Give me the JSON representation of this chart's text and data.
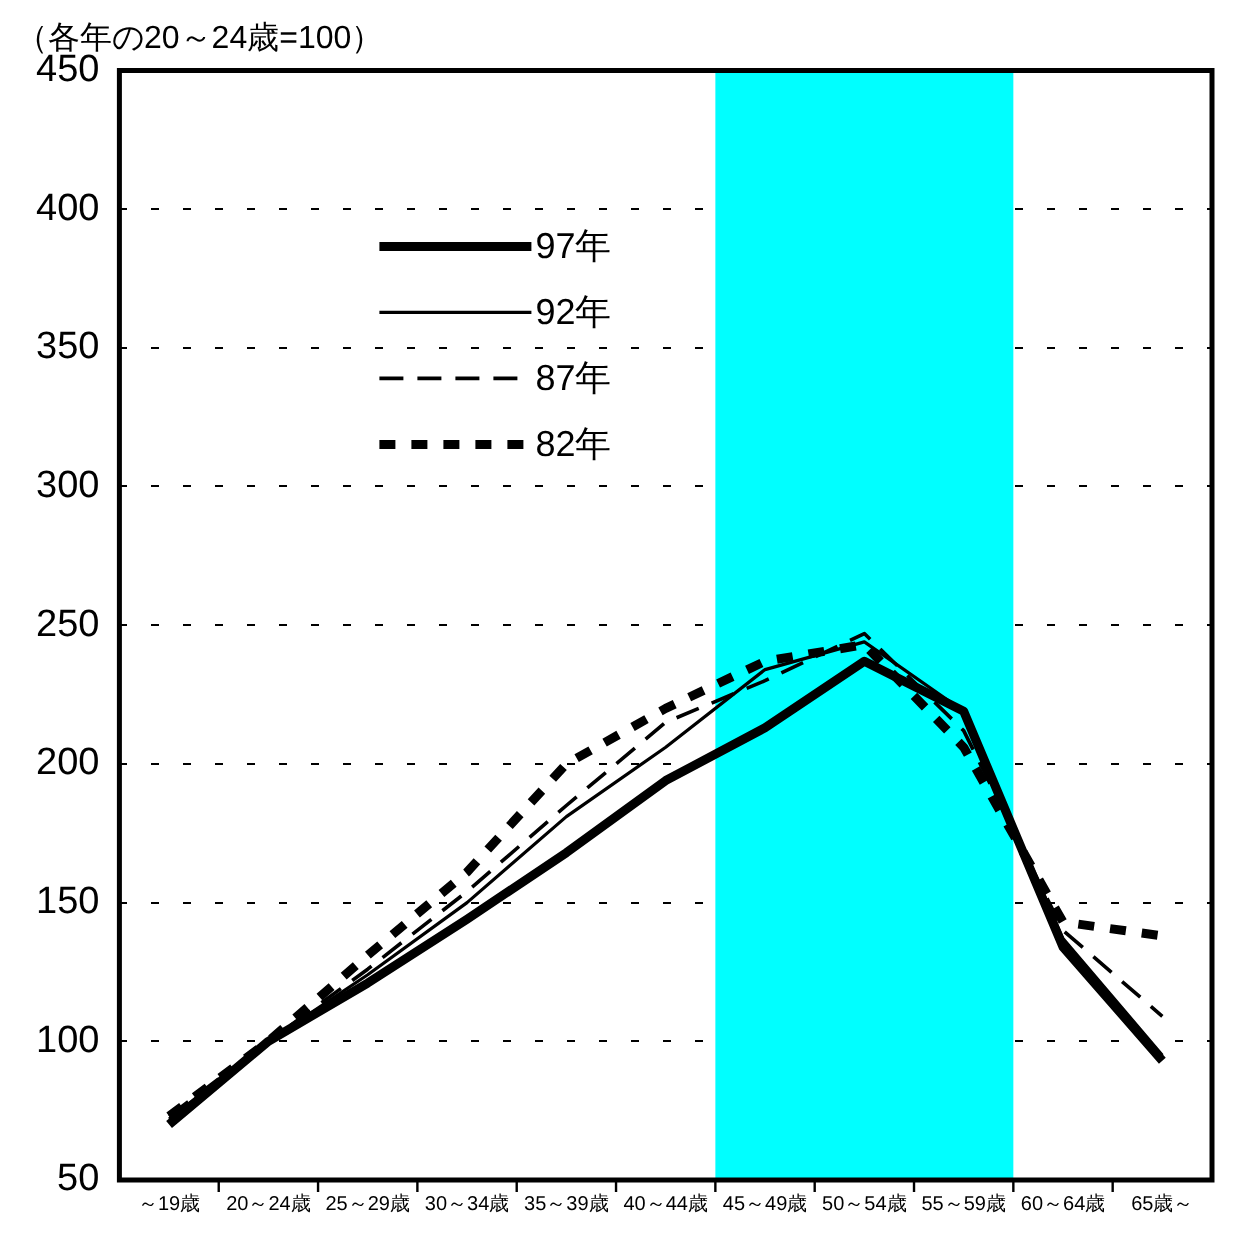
{
  "chart_data": {
    "type": "line",
    "title": "（各年の20～24歳=100）",
    "categories": [
      "～19歳",
      "20～24歳",
      "25～29歳",
      "30～34歳",
      "35～39歳",
      "40～44歳",
      "45～49歳",
      "50～54歳",
      "55～59歳",
      "60～64歳",
      "65歳～"
    ],
    "series": [
      {
        "name": "97年",
        "color": "#000000",
        "line_style": "solid",
        "values": [
          70,
          100,
          121,
          144,
          168,
          194,
          213,
          237,
          219,
          134,
          93
        ]
      },
      {
        "name": "92年",
        "color": "#000000",
        "line_style": "solid",
        "values": [
          72,
          100,
          124,
          150,
          181,
          206,
          234,
          244,
          219,
          137,
          95
        ]
      },
      {
        "name": "87年",
        "color": "#000000",
        "line_style": "dashed",
        "values": [
          73,
          100,
          126,
          154,
          185,
          215,
          230,
          247,
          212,
          140,
          109
        ]
      },
      {
        "name": "82年",
        "color": "#000000",
        "line_style": "dotted",
        "values": [
          73,
          100,
          131,
          161,
          200,
          220,
          237,
          243,
          206,
          143,
          138
        ]
      }
    ],
    "ylim": [
      50,
      450
    ],
    "yticks": [
      50,
      100,
      150,
      200,
      250,
      300,
      350,
      400,
      450
    ],
    "bands": [
      {
        "axis": "x",
        "from": "45～49歳",
        "to": "55～59歳",
        "color": "#00ffff"
      }
    ],
    "grid": "y",
    "legend": "top left",
    "marker": "none"
  }
}
